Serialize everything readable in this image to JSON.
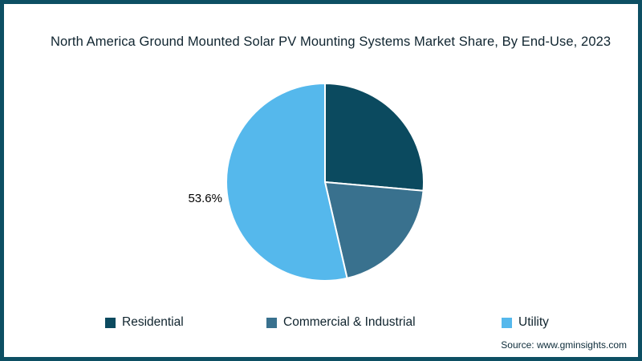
{
  "title": "North America Ground Mounted Solar PV Mounting Systems Market Share, By End-Use, 2023",
  "source": "Source: www.gminsights.com",
  "pie_label": "53.6%",
  "colors": {
    "frame": "#0d4f63",
    "residential": "#0b4a5f",
    "commercial_industrial": "#39718e",
    "utility": "#55b8ec"
  },
  "chart_data": {
    "type": "pie",
    "title": "North America Ground Mounted Solar PV Mounting Systems Market Share, By End-Use, 2023",
    "categories": [
      "Residential",
      "Commercial & Industrial",
      "Utility"
    ],
    "values": [
      26.4,
      20.0,
      53.6
    ],
    "colors": [
      "#0b4a5f",
      "#39718e",
      "#55b8ec"
    ],
    "data_labels": [
      "",
      "",
      "53.6%"
    ],
    "start_angle_deg": 0,
    "direction": "clockwise",
    "legend_position": "bottom",
    "source": "Source: www.gminsights.com"
  },
  "legend": {
    "items": [
      {
        "label": "Residential",
        "color": "#0b4a5f"
      },
      {
        "label": "Commercial & Industrial",
        "color": "#39718e"
      },
      {
        "label": "Utility",
        "color": "#55b8ec"
      }
    ]
  }
}
